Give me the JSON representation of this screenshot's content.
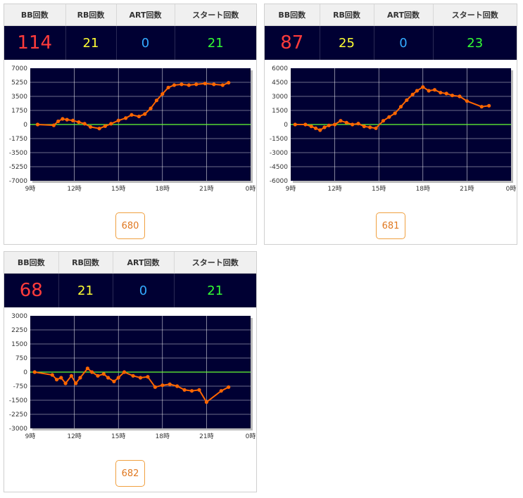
{
  "headers": {
    "bb": "BB回数",
    "rb": "RB回数",
    "art": "ART回数",
    "start": "スタート回数"
  },
  "colors": {
    "background": "#000033",
    "line": "#ff6600",
    "zero_line": "#66ff33",
    "grid": "#ffffff"
  },
  "machines": [
    {
      "stats": {
        "bb": "114",
        "rb": "21",
        "art": "0",
        "start": "21"
      },
      "button_label": "680",
      "chart_data": {
        "type": "line",
        "ylim": [
          -7000,
          7000
        ],
        "yticks": [
          "7000",
          "5250",
          "3500",
          "1750",
          "0",
          "-1750",
          "-3500",
          "-5250",
          "-7000"
        ],
        "xlim": [
          9,
          24
        ],
        "xticks": [
          "9時",
          "12時",
          "15時",
          "18時",
          "21時",
          "0時"
        ],
        "series": [
          {
            "x": [
              9.5,
              10.6,
              10.9,
              11.2,
              11.5,
              11.9,
              12.3,
              12.7,
              13.1,
              13.7,
              14.1,
              14.5,
              15.0,
              15.5,
              15.9,
              16.4,
              16.8,
              17.2,
              17.6,
              18.0,
              18.4,
              18.8,
              19.3,
              19.8,
              20.3,
              20.9,
              21.5,
              22.1,
              22.5
            ],
            "y": [
              0,
              -100,
              400,
              700,
              600,
              500,
              300,
              100,
              -300,
              -500,
              -200,
              100,
              500,
              800,
              1200,
              1000,
              1300,
              2000,
              3000,
              3800,
              4600,
              4900,
              5000,
              4900,
              5000,
              5100,
              5000,
              4900,
              5200
            ]
          }
        ]
      }
    },
    {
      "stats": {
        "bb": "87",
        "rb": "25",
        "art": "0",
        "start": "23"
      },
      "button_label": "681",
      "chart_data": {
        "type": "line",
        "ylim": [
          -6000,
          6000
        ],
        "yticks": [
          "6000",
          "4500",
          "3000",
          "1500",
          "0",
          "-1500",
          "-3000",
          "-4500",
          "-6000"
        ],
        "xlim": [
          9,
          24
        ],
        "xticks": [
          "9時",
          "12時",
          "15時",
          "18時",
          "21時",
          "0時"
        ],
        "series": [
          {
            "x": [
              9.3,
              10.0,
              10.4,
              10.7,
              11.0,
              11.3,
              11.6,
              12.0,
              12.4,
              12.8,
              13.2,
              13.6,
              14.0,
              14.4,
              14.8,
              15.3,
              15.7,
              16.1,
              16.5,
              16.9,
              17.3,
              17.6,
              18.0,
              18.4,
              18.8,
              19.2,
              19.6,
              20.0,
              20.5,
              21.0,
              22.0,
              22.5
            ],
            "y": [
              0,
              0,
              -200,
              -400,
              -600,
              -300,
              -100,
              0,
              400,
              200,
              0,
              100,
              -200,
              -300,
              -400,
              400,
              800,
              1200,
              1900,
              2600,
              3200,
              3600,
              4000,
              3600,
              3700,
              3400,
              3300,
              3100,
              3000,
              2500,
              1900,
              2000
            ]
          }
        ]
      }
    },
    {
      "stats": {
        "bb": "68",
        "rb": "21",
        "art": "0",
        "start": "21"
      },
      "button_label": "682",
      "chart_data": {
        "type": "line",
        "ylim": [
          -3000,
          3000
        ],
        "yticks": [
          "3000",
          "2250",
          "1500",
          "750",
          "0",
          "-750",
          "-1500",
          "-2250",
          "-3000"
        ],
        "xlim": [
          9,
          24
        ],
        "xticks": [
          "9時",
          "12時",
          "15時",
          "18時",
          "21時",
          "0時"
        ],
        "series": [
          {
            "x": [
              9.3,
              10.5,
              10.8,
              11.1,
              11.4,
              11.8,
              12.1,
              12.4,
              12.9,
              13.2,
              13.6,
              14.0,
              14.3,
              14.7,
              15.0,
              15.4,
              16.0,
              16.5,
              17.0,
              17.5,
              18.0,
              18.5,
              19.0,
              19.5,
              20.0,
              20.5,
              21.0,
              22.0,
              22.5
            ],
            "y": [
              0,
              -150,
              -400,
              -300,
              -600,
              -200,
              -600,
              -300,
              200,
              0,
              -200,
              -100,
              -300,
              -500,
              -300,
              0,
              -200,
              -300,
              -250,
              -800,
              -700,
              -650,
              -750,
              -950,
              -1000,
              -950,
              -1600,
              -1000,
              -800
            ]
          }
        ]
      }
    }
  ]
}
